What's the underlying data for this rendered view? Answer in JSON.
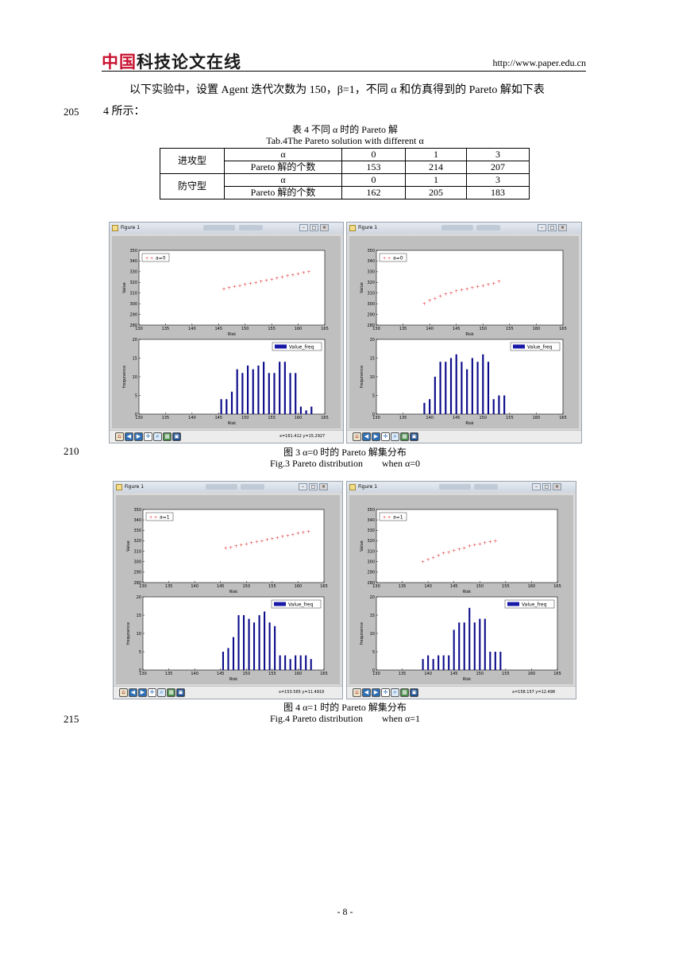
{
  "header": {
    "logo_red": "中国",
    "logo_dark": "科技论文在线",
    "url": "http://www.paper.edu.cn"
  },
  "body": {
    "para_line1": "以下实验中，设置 Agent 迭代次数为 150，β=1，不同 α 和仿真得到的 Pareto 解如下表",
    "para_line2": "4 所示：",
    "line_205": "205",
    "line_210": "210",
    "line_215": "215"
  },
  "table": {
    "caption_cn": "表 4  不同 α 时的 Pareto 解",
    "caption_en": "Tab.4The Pareto solution with different α",
    "groups": [
      {
        "name": "进攻型",
        "alpha_label": "α",
        "alphas": [
          "0",
          "1",
          "3"
        ],
        "count_label": "Pareto 解的个数",
        "counts": [
          "153",
          "214",
          "207"
        ]
      },
      {
        "name": "防守型",
        "alpha_label": "α",
        "alphas": [
          "0",
          "1",
          "3"
        ],
        "count_label": "Pareto 解的个数",
        "counts": [
          "162",
          "205",
          "183"
        ]
      }
    ]
  },
  "figures": {
    "fig3": {
      "caption_cn": "图 3 α=0 时的 Pareto 解集分布",
      "caption_en": "Fig.3 Pareto distribution        when α=0"
    },
    "fig4": {
      "caption_cn": "图 4 α=1 时的 Pareto 解集分布",
      "caption_en": "Fig.4 Pareto distribution        when α=1"
    }
  },
  "windows": [
    {
      "title": "Figure 1",
      "coord": "x=161.412     y=15.2927"
    },
    {
      "title": "Figure 1",
      "coord": ""
    },
    {
      "title": "Figure 1",
      "coord": "x=153.565     y=11.4919"
    },
    {
      "title": "Figure 1",
      "coord": "x=158.157     y=12.498"
    }
  ],
  "chart_data": [
    {
      "type": "scatter",
      "panel": "fig3-left-top",
      "legend": "a=0",
      "xlabel": "Risk",
      "ylabel": "Value",
      "xlim": [
        130,
        165
      ],
      "ylim": [
        280,
        350
      ],
      "x": [
        146,
        147,
        148,
        149,
        150,
        151,
        152,
        153,
        154,
        155,
        156,
        157,
        158,
        159,
        160,
        161,
        162
      ],
      "y": [
        314,
        315,
        316,
        317,
        318,
        319,
        320,
        321,
        322,
        323,
        324,
        325,
        326,
        327,
        328,
        329,
        330
      ]
    },
    {
      "type": "bar",
      "panel": "fig3-left-bottom",
      "legend": "Value_freq",
      "xlabel": "Risk",
      "ylabel": "frequnence",
      "xlim": [
        130,
        165
      ],
      "ylim": [
        0,
        20
      ],
      "x": [
        145.5,
        146.5,
        147.5,
        148.5,
        149.5,
        150.5,
        151.5,
        152.5,
        153.5,
        154.5,
        155.5,
        156.5,
        157.5,
        158.5,
        159.5,
        160.5,
        161.5,
        162.5
      ],
      "values": [
        4,
        4,
        6,
        12,
        11,
        13,
        12,
        13,
        14,
        11,
        11,
        14,
        14,
        11,
        11,
        2,
        1,
        2
      ]
    },
    {
      "type": "scatter",
      "panel": "fig3-right-top",
      "legend": "a=0",
      "xlabel": "Risk",
      "ylabel": "Value",
      "xlim": [
        130,
        165
      ],
      "ylim": [
        280,
        350
      ],
      "x": [
        139,
        140,
        141,
        142,
        143,
        144,
        145,
        146,
        147,
        148,
        149,
        150,
        151,
        152,
        153
      ],
      "y": [
        300,
        303,
        305,
        307,
        309,
        310,
        312,
        313,
        314,
        315,
        316,
        317,
        318,
        319,
        321
      ]
    },
    {
      "type": "bar",
      "panel": "fig3-right-bottom",
      "legend": "Value_freq",
      "xlabel": "Risk",
      "ylabel": "frequnence",
      "xlim": [
        130,
        165
      ],
      "ylim": [
        0,
        20
      ],
      "x": [
        139,
        140,
        141,
        142,
        143,
        144,
        145,
        146,
        147,
        148,
        149,
        150,
        151,
        152,
        153,
        154
      ],
      "values": [
        3,
        4,
        10,
        14,
        14,
        15,
        16,
        14,
        12,
        15,
        14,
        16,
        14,
        4,
        5,
        5
      ]
    },
    {
      "type": "scatter",
      "panel": "fig4-left-top",
      "legend": "a=1",
      "xlabel": "Risk",
      "ylabel": "Value",
      "xlim": [
        130,
        165
      ],
      "ylim": [
        280,
        350
      ],
      "x": [
        146,
        147,
        148,
        149,
        150,
        151,
        152,
        153,
        154,
        155,
        156,
        157,
        158,
        159,
        160,
        161,
        162
      ],
      "y": [
        313,
        314,
        315,
        316,
        317,
        318,
        319,
        320,
        321,
        322,
        323,
        324,
        325,
        326,
        327,
        328,
        329
      ]
    },
    {
      "type": "bar",
      "panel": "fig4-left-bottom",
      "legend": "Value_freq",
      "xlabel": "Risk",
      "ylabel": "frequnence",
      "xlim": [
        130,
        165
      ],
      "ylim": [
        0,
        20
      ],
      "x": [
        145.5,
        146.5,
        147.5,
        148.5,
        149.5,
        150.5,
        151.5,
        152.5,
        153.5,
        154.5,
        155.5,
        156.5,
        157.5,
        158.5,
        159.5,
        160.5,
        161.5,
        162.5
      ],
      "values": [
        5,
        6,
        9,
        15,
        15,
        14,
        13,
        15,
        16,
        13,
        12,
        4,
        4,
        3,
        4,
        4,
        4,
        3
      ]
    },
    {
      "type": "scatter",
      "panel": "fig4-right-top",
      "legend": "a=1",
      "xlabel": "Risk",
      "ylabel": "Value",
      "xlim": [
        130,
        165
      ],
      "ylim": [
        280,
        350
      ],
      "x": [
        139,
        140,
        141,
        142,
        143,
        144,
        145,
        146,
        147,
        148,
        149,
        150,
        151,
        152,
        153
      ],
      "y": [
        300,
        302,
        304,
        306,
        308,
        309,
        311,
        312,
        313,
        315,
        316,
        317,
        318,
        319,
        320
      ]
    },
    {
      "type": "bar",
      "panel": "fig4-right-bottom",
      "legend": "Value_freq",
      "xlabel": "Risk",
      "ylabel": "frequnence",
      "xlim": [
        130,
        165
      ],
      "ylim": [
        0,
        20
      ],
      "x": [
        139,
        140,
        141,
        142,
        143,
        144,
        145,
        146,
        147,
        148,
        149,
        150,
        151,
        152,
        153,
        154
      ],
      "values": [
        3,
        4,
        3,
        4,
        4,
        4,
        11,
        13,
        13,
        17,
        13,
        14,
        14,
        5,
        5,
        5
      ]
    }
  ],
  "axis_ticks": {
    "risk": [
      "130",
      "135",
      "140",
      "145",
      "150",
      "155",
      "160",
      "165"
    ],
    "value": [
      "280",
      "290",
      "300",
      "310",
      "320",
      "330",
      "340",
      "350"
    ],
    "freq": [
      "0",
      "5",
      "10",
      "15",
      "20"
    ]
  },
  "page": {
    "number": "- 8 -"
  }
}
